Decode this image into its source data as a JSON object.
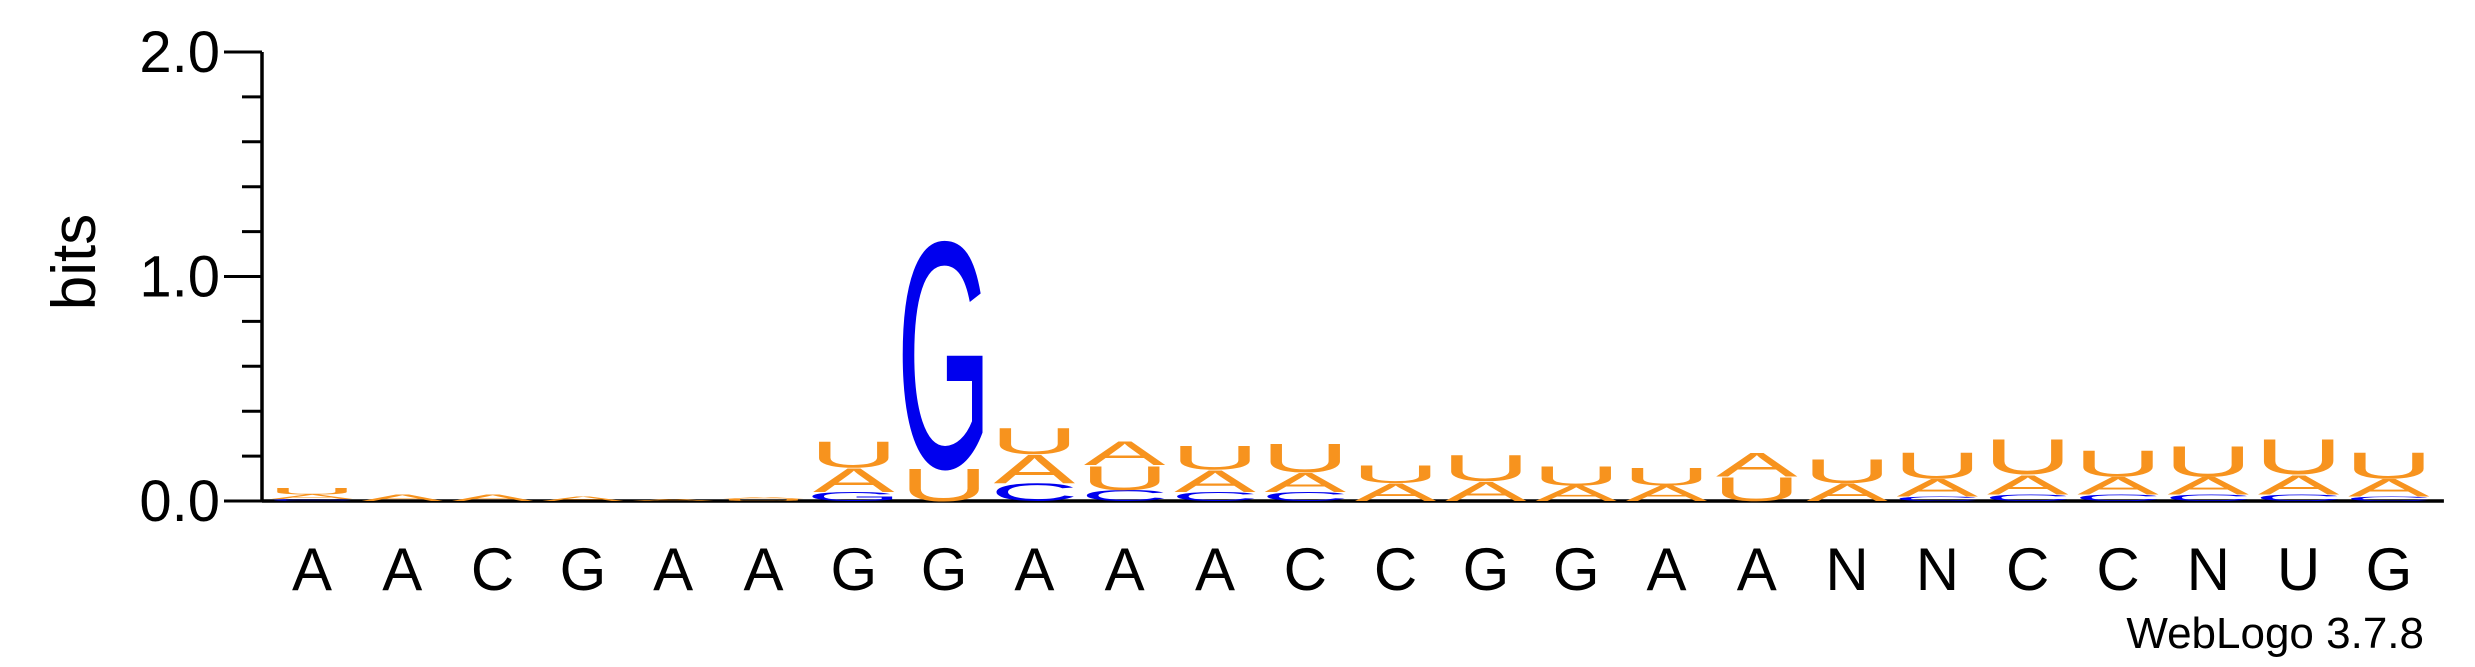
{
  "chart_data": {
    "type": "sequence-logo",
    "ylabel": "bits",
    "ylim": [
      0,
      2.0
    ],
    "yticks": [
      {
        "value": 0.0,
        "label": "0.0"
      },
      {
        "value": 1.0,
        "label": "1.0"
      },
      {
        "value": 2.0,
        "label": "2.0"
      }
    ],
    "positions": [
      "A",
      "A",
      "C",
      "G",
      "A",
      "A",
      "G",
      "G",
      "A",
      "A",
      "A",
      "C",
      "C",
      "G",
      "G",
      "A",
      "A",
      "N",
      "N",
      "C",
      "C",
      "N",
      "U",
      "G"
    ],
    "colors": {
      "A": "#f7931e",
      "U": "#f7931e",
      "C": "#0000ee",
      "G": "#0000ee"
    },
    "stacks": [
      [
        {
          "letter": "C",
          "bits": 0.01
        },
        {
          "letter": "A",
          "bits": 0.02
        },
        {
          "letter": "U",
          "bits": 0.03
        }
      ],
      [
        {
          "letter": "A",
          "bits": 0.03
        }
      ],
      [
        {
          "letter": "A",
          "bits": 0.03
        }
      ],
      [
        {
          "letter": "A",
          "bits": 0.02
        }
      ],
      [
        {
          "letter": "A",
          "bits": 0.01
        }
      ],
      [
        {
          "letter": "U",
          "bits": 0.01
        },
        {
          "letter": "A",
          "bits": 0.01
        }
      ],
      [
        {
          "letter": "G",
          "bits": 0.04
        },
        {
          "letter": "A",
          "bits": 0.11
        },
        {
          "letter": "U",
          "bits": 0.12
        }
      ],
      [
        {
          "letter": "U",
          "bits": 0.15
        },
        {
          "letter": "G",
          "bits": 1.04
        }
      ],
      [
        {
          "letter": "C",
          "bits": 0.08
        },
        {
          "letter": "A",
          "bits": 0.13
        },
        {
          "letter": "U",
          "bits": 0.12
        }
      ],
      [
        {
          "letter": "C",
          "bits": 0.05
        },
        {
          "letter": "U",
          "bits": 0.11
        },
        {
          "letter": "A",
          "bits": 0.11
        }
      ],
      [
        {
          "letter": "C",
          "bits": 0.04
        },
        {
          "letter": "A",
          "bits": 0.1
        },
        {
          "letter": "U",
          "bits": 0.11
        }
      ],
      [
        {
          "letter": "C",
          "bits": 0.04
        },
        {
          "letter": "A",
          "bits": 0.09
        },
        {
          "letter": "U",
          "bits": 0.13
        }
      ],
      [
        {
          "letter": "A",
          "bits": 0.08
        },
        {
          "letter": "U",
          "bits": 0.08
        }
      ],
      [
        {
          "letter": "A",
          "bits": 0.09
        },
        {
          "letter": "U",
          "bits": 0.12
        }
      ],
      [
        {
          "letter": "A",
          "bits": 0.07
        },
        {
          "letter": "U",
          "bits": 0.09
        }
      ],
      [
        {
          "letter": "A",
          "bits": 0.07
        },
        {
          "letter": "U",
          "bits": 0.08
        }
      ],
      [
        {
          "letter": "U",
          "bits": 0.11
        },
        {
          "letter": "A",
          "bits": 0.11
        }
      ],
      [
        {
          "letter": "A",
          "bits": 0.08
        },
        {
          "letter": "U",
          "bits": 0.11
        }
      ],
      [
        {
          "letter": "C",
          "bits": 0.02
        },
        {
          "letter": "A",
          "bits": 0.08
        },
        {
          "letter": "U",
          "bits": 0.12
        }
      ],
      [
        {
          "letter": "C",
          "bits": 0.03
        },
        {
          "letter": "A",
          "bits": 0.09
        },
        {
          "letter": "U",
          "bits": 0.16
        }
      ],
      [
        {
          "letter": "C",
          "bits": 0.03
        },
        {
          "letter": "A",
          "bits": 0.08
        },
        {
          "letter": "U",
          "bits": 0.12
        }
      ],
      [
        {
          "letter": "C",
          "bits": 0.03
        },
        {
          "letter": "A",
          "bits": 0.08
        },
        {
          "letter": "U",
          "bits": 0.14
        }
      ],
      [
        {
          "letter": "C",
          "bits": 0.03
        },
        {
          "letter": "A",
          "bits": 0.09
        },
        {
          "letter": "U",
          "bits": 0.16
        }
      ],
      [
        {
          "letter": "C",
          "bits": 0.02
        },
        {
          "letter": "A",
          "bits": 0.08
        },
        {
          "letter": "U",
          "bits": 0.12
        }
      ]
    ]
  },
  "footer": {
    "credit": "WebLogo 3.7.8"
  }
}
